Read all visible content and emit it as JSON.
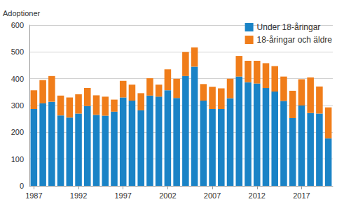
{
  "chart_data": {
    "type": "bar",
    "stacked": true,
    "y_label": "Adoptioner",
    "categories": [
      "1987",
      null,
      null,
      null,
      null,
      "1992",
      null,
      null,
      null,
      null,
      "1997",
      null,
      null,
      null,
      null,
      "2002",
      null,
      null,
      null,
      null,
      "2007",
      null,
      null,
      null,
      null,
      "2012",
      null,
      null,
      null,
      null,
      "2017",
      null,
      null,
      null
    ],
    "series": [
      {
        "name": "Under 18-åringar",
        "color": "#1a83c6",
        "values": [
          287,
          308,
          314,
          263,
          255,
          270,
          298,
          265,
          262,
          277,
          330,
          318,
          282,
          337,
          333,
          357,
          328,
          410,
          445,
          318,
          287,
          287,
          327,
          408,
          387,
          382,
          365,
          352,
          317,
          253,
          300,
          272,
          270,
          177
        ]
      },
      {
        "name": "18-åringar och äldre",
        "color": "#f07d1a",
        "values": [
          70,
          87,
          96,
          74,
          75,
          72,
          67,
          73,
          71,
          45,
          62,
          60,
          64,
          65,
          45,
          78,
          72,
          90,
          72,
          62,
          83,
          77,
          73,
          77,
          80,
          85,
          93,
          95,
          91,
          102,
          98,
          133,
          101,
          116
        ]
      }
    ],
    "ylim": [
      0,
      600
    ],
    "yticks": [
      0,
      100,
      200,
      300,
      400,
      500,
      600
    ],
    "grid": true,
    "legend": "top-right"
  }
}
